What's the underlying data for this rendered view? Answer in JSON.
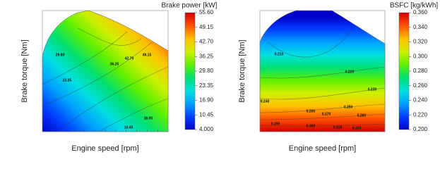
{
  "chart_data": [
    {
      "type": "contour",
      "colorbar_title": "Brake power [kW]",
      "x_label": "Engine speed [rpm]",
      "y_label": "Brake torque [Nm]",
      "clim": [
        4,
        55.6
      ],
      "cticks": [
        {
          "value": 4,
          "label": "4.000"
        },
        10.45,
        {
          "value": 16.9,
          "label": "16.90"
        },
        23.35,
        {
          "value": 29.8,
          "label": "29.80"
        },
        36.25,
        {
          "value": 42.7,
          "label": "42.70"
        },
        49.15,
        {
          "value": 55.6,
          "label": "55.60"
        }
      ],
      "colormap": [
        "#0000c8",
        "#0040ff",
        "#00a0ff",
        "#00e0e0",
        "#00e070",
        "#60f000",
        "#d0f000",
        "#ffc000",
        "#ff5000",
        "#d00000"
      ],
      "contour_labels": [
        "29.80",
        "42.70",
        "49.15",
        "36.25",
        "23.35",
        "16.90",
        "10.45"
      ]
    },
    {
      "type": "contour",
      "colorbar_title": "BSFC [kg/kWh]",
      "x_label": "Engine speed [rpm]",
      "y_label": "Brake torque [Nm]",
      "clim": [
        0.2,
        0.36
      ],
      "cticks": [
        {
          "value": 0.2,
          "label": "0.200"
        },
        {
          "value": 0.22,
          "label": "0.220"
        },
        {
          "value": 0.24,
          "label": "0.240"
        },
        {
          "value": 0.26,
          "label": "0.260"
        },
        {
          "value": 0.28,
          "label": "0.280"
        },
        {
          "value": 0.3,
          "label": "0.300"
        },
        {
          "value": 0.32,
          "label": "0.320"
        },
        {
          "value": 0.34,
          "label": "0.340"
        },
        {
          "value": 0.36,
          "label": "0.360"
        }
      ],
      "colormap": [
        "#0000c8",
        "#0040ff",
        "#00a0ff",
        "#00e0e0",
        "#00e070",
        "#60f000",
        "#d0f000",
        "#ffc000",
        "#ff5000",
        "#d00000"
      ],
      "contour_labels": [
        "0.210",
        "0.220",
        "0.230",
        "0.240",
        "0.250",
        "0.260",
        "0.270",
        "0.280",
        "0.290",
        "0.300",
        "0.310",
        "0.320"
      ]
    }
  ]
}
